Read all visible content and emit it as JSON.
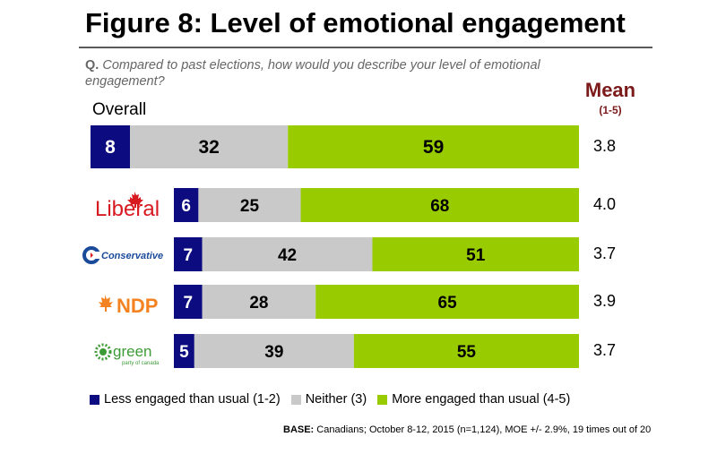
{
  "title": "Figure 8: Level of emotional engagement",
  "question": {
    "prefix": "Q.",
    "text": "Compared to past elections, how would you describe your level of emotional engagement?"
  },
  "mean_header": {
    "title": "Mean",
    "range": "(1-5)"
  },
  "rows": [
    {
      "label": "Overall",
      "logo": null
    },
    {
      "label": "Liberal",
      "logo": "liberal-logo"
    },
    {
      "label": "Conservative",
      "logo": "conservative-logo"
    },
    {
      "label": "NDP",
      "logo": "ndp-logo"
    },
    {
      "label": "green",
      "sublabel": "party of canada",
      "logo": "green-logo"
    }
  ],
  "legend": [
    {
      "label": "Less engaged than usual (1-2)",
      "color": "#0c0c80"
    },
    {
      "label": "Neither (3)",
      "color": "#c9c9c9"
    },
    {
      "label": "More engaged than usual (4-5)",
      "color": "#99cc00"
    }
  ],
  "base": {
    "label": "BASE:",
    "text": "Canadians; October 8-12, 2015 (n=1,124), MOE +/- 2.9%, 19 times out of 20"
  },
  "colors": {
    "less": "#0c0c80",
    "neither": "#c9c9c9",
    "more": "#99cc00",
    "mean_title": "#7b1a1a",
    "liberal": "#d71920",
    "conservative": "#1a4a9a",
    "ndp": "#f58220",
    "green": "#3d9b35"
  },
  "chart_data": {
    "type": "bar",
    "orientation": "horizontal",
    "stacked": true,
    "categories": [
      "Overall",
      "Liberal",
      "Conservative",
      "NDP",
      "Green"
    ],
    "series": [
      {
        "name": "Less engaged than usual (1-2)",
        "values": [
          8,
          6,
          7,
          7,
          5
        ]
      },
      {
        "name": "Neither (3)",
        "values": [
          32,
          25,
          42,
          28,
          39
        ]
      },
      {
        "name": "More engaged than usual (4-5)",
        "values": [
          59,
          68,
          51,
          65,
          55
        ]
      }
    ],
    "mean": [
      "3.8",
      "4.0",
      "3.7",
      "3.9",
      "3.7"
    ],
    "title": "Figure 8: Level of emotional engagement",
    "legend_position": "bottom"
  }
}
